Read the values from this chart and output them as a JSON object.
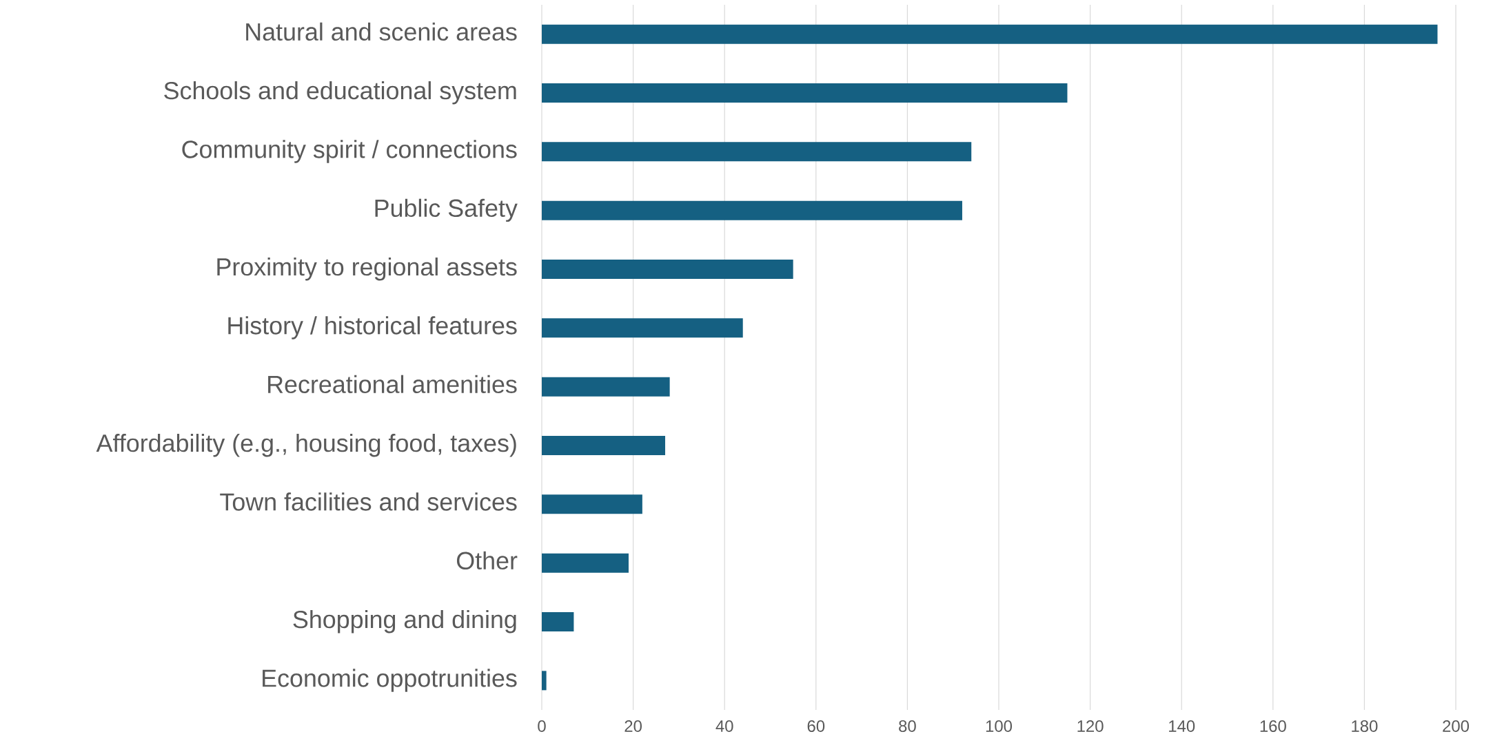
{
  "chart_data": {
    "type": "bar",
    "orientation": "horizontal",
    "categories": [
      "Natural and scenic areas",
      "Schools and educational system",
      "Community spirit / connections",
      "Public Safety",
      "Proximity to regional assets",
      "History / historical features",
      "Recreational amenities",
      "Affordability (e.g., housing food, taxes)",
      "Town facilities and services",
      "Other",
      "Shopping and dining",
      "Economic oppotrunities"
    ],
    "values": [
      196,
      115,
      94,
      92,
      55,
      44,
      28,
      27,
      22,
      19,
      7,
      1
    ],
    "color": "#156082",
    "xlim": [
      0,
      200
    ],
    "xticks": [
      0,
      20,
      40,
      60,
      80,
      100,
      120,
      140,
      160,
      180,
      200
    ],
    "grid": "x"
  }
}
